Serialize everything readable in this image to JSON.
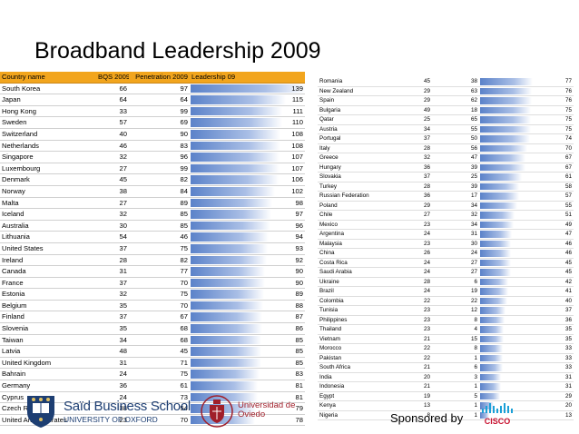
{
  "title": "Broadband Leadership 2009",
  "left_table": {
    "headers": [
      "Country name",
      "BQS 2009",
      "Penetration 2009",
      "Leadership 09"
    ],
    "max_leadership": 139,
    "rows": [
      {
        "country": "South Korea",
        "bqs": "66",
        "pen": "97",
        "lead": 139
      },
      {
        "country": "Japan",
        "bqs": "64",
        "pen": "64",
        "lead": 115
      },
      {
        "country": "Hong Kong",
        "bqs": "33",
        "pen": "99",
        "lead": 111
      },
      {
        "country": "Sweden",
        "bqs": "57",
        "pen": "69",
        "lead": 110
      },
      {
        "country": "Switzerland",
        "bqs": "40",
        "pen": "90",
        "lead": 108
      },
      {
        "country": "Netherlands",
        "bqs": "46",
        "pen": "83",
        "lead": 108
      },
      {
        "country": "Singapore",
        "bqs": "32",
        "pen": "96",
        "lead": 107
      },
      {
        "country": "Luxembourg",
        "bqs": "27",
        "pen": "99",
        "lead": 107
      },
      {
        "country": "Denmark",
        "bqs": "45",
        "pen": "82",
        "lead": 106
      },
      {
        "country": "Norway",
        "bqs": "38",
        "pen": "84",
        "lead": 102
      },
      {
        "country": "Malta",
        "bqs": "27",
        "pen": "89",
        "lead": 98
      },
      {
        "country": "Iceland",
        "bqs": "32",
        "pen": "85",
        "lead": 97
      },
      {
        "country": "Australia",
        "bqs": "30",
        "pen": "85",
        "lead": 96
      },
      {
        "country": "Lithuania",
        "bqs": "54",
        "pen": "46",
        "lead": 94
      },
      {
        "country": "United States",
        "bqs": "37",
        "pen": "75",
        "lead": 93
      },
      {
        "country": "Ireland",
        "bqs": "28",
        "pen": "82",
        "lead": 92
      },
      {
        "country": "Canada",
        "bqs": "31",
        "pen": "77",
        "lead": 90
      },
      {
        "country": "France",
        "bqs": "37",
        "pen": "70",
        "lead": 90
      },
      {
        "country": "Estonia",
        "bqs": "32",
        "pen": "75",
        "lead": 89
      },
      {
        "country": "Belgium",
        "bqs": "35",
        "pen": "70",
        "lead": 88
      },
      {
        "country": "Finland",
        "bqs": "37",
        "pen": "67",
        "lead": 87
      },
      {
        "country": "Slovenia",
        "bqs": "35",
        "pen": "68",
        "lead": 86
      },
      {
        "country": "Taiwan",
        "bqs": "34",
        "pen": "68",
        "lead": 85
      },
      {
        "country": "Latvia",
        "bqs": "48",
        "pen": "45",
        "lead": 85
      },
      {
        "country": "United Kingdom",
        "bqs": "31",
        "pen": "71",
        "lead": 85
      },
      {
        "country": "Bahrain",
        "bqs": "24",
        "pen": "75",
        "lead": 83
      },
      {
        "country": "Germany",
        "bqs": "36",
        "pen": "61",
        "lead": 81
      },
      {
        "country": "Cyprus",
        "bqs": "24",
        "pen": "73",
        "lead": 81
      },
      {
        "country": "Czech Republic",
        "bqs": "38",
        "pen": "54",
        "lead": 79
      },
      {
        "country": "United Arab Emirates",
        "bqs": "23",
        "pen": "70",
        "lead": 78
      }
    ]
  },
  "right_table": {
    "max_leadership": 139,
    "rows": [
      {
        "country": "Romania",
        "bqs": "45",
        "pen": "38",
        "lead": 77
      },
      {
        "country": "New Zealand",
        "bqs": "29",
        "pen": "63",
        "lead": 76
      },
      {
        "country": "Spain",
        "bqs": "29",
        "pen": "62",
        "lead": 76
      },
      {
        "country": "Bulgaria",
        "bqs": "49",
        "pen": "18",
        "lead": 75
      },
      {
        "country": "Qatar",
        "bqs": "25",
        "pen": "65",
        "lead": 75
      },
      {
        "country": "Austria",
        "bqs": "34",
        "pen": "55",
        "lead": 75
      },
      {
        "country": "Portugal",
        "bqs": "37",
        "pen": "50",
        "lead": 74
      },
      {
        "country": "Italy",
        "bqs": "28",
        "pen": "56",
        "lead": 70
      },
      {
        "country": "Greece",
        "bqs": "32",
        "pen": "47",
        "lead": 67
      },
      {
        "country": "Hungary",
        "bqs": "36",
        "pen": "39",
        "lead": 67
      },
      {
        "country": "Slovakia",
        "bqs": "37",
        "pen": "25",
        "lead": 61
      },
      {
        "country": "Turkey",
        "bqs": "28",
        "pen": "39",
        "lead": 58
      },
      {
        "country": "Russian Federation",
        "bqs": "36",
        "pen": "17",
        "lead": 57
      },
      {
        "country": "Poland",
        "bqs": "29",
        "pen": "34",
        "lead": 55
      },
      {
        "country": "Chile",
        "bqs": "27",
        "pen": "32",
        "lead": 51
      },
      {
        "country": "Mexico",
        "bqs": "23",
        "pen": "34",
        "lead": 49
      },
      {
        "country": "Argentina",
        "bqs": "24",
        "pen": "31",
        "lead": 47
      },
      {
        "country": "Malaysia",
        "bqs": "23",
        "pen": "30",
        "lead": 46
      },
      {
        "country": "China",
        "bqs": "26",
        "pen": "24",
        "lead": 46
      },
      {
        "country": "Costa Rica",
        "bqs": "24",
        "pen": "27",
        "lead": 45
      },
      {
        "country": "Saudi Arabia",
        "bqs": "24",
        "pen": "27",
        "lead": 45
      },
      {
        "country": "Ukraine",
        "bqs": "28",
        "pen": "6",
        "lead": 42
      },
      {
        "country": "Brazil",
        "bqs": "24",
        "pen": "19",
        "lead": 41
      },
      {
        "country": "Colombia",
        "bqs": "22",
        "pen": "22",
        "lead": 40
      },
      {
        "country": "Tunisia",
        "bqs": "23",
        "pen": "12",
        "lead": 37
      },
      {
        "country": "Philippines",
        "bqs": "23",
        "pen": "8",
        "lead": 36
      },
      {
        "country": "Thailand",
        "bqs": "23",
        "pen": "4",
        "lead": 35
      },
      {
        "country": "Vietnam",
        "bqs": "21",
        "pen": "15",
        "lead": 35
      },
      {
        "country": "Morocco",
        "bqs": "22",
        "pen": "8",
        "lead": 33
      },
      {
        "country": "Pakistan",
        "bqs": "22",
        "pen": "1",
        "lead": 33
      },
      {
        "country": "South Africa",
        "bqs": "21",
        "pen": "6",
        "lead": 33
      },
      {
        "country": "India",
        "bqs": "20",
        "pen": "3",
        "lead": 31
      },
      {
        "country": "Indonesia",
        "bqs": "21",
        "pen": "1",
        "lead": 31
      },
      {
        "country": "Egypt",
        "bqs": "19",
        "pen": "5",
        "lead": 29
      },
      {
        "country": "Kenya",
        "bqs": "13",
        "pen": "1",
        "lead": 20
      },
      {
        "country": "Nigeria",
        "bqs": "8",
        "pen": "1",
        "lead": 13
      }
    ]
  },
  "footer": {
    "said_name": "Saïd Business School",
    "said_sub": "UNIVERSITY OF OXFORD",
    "oviedo_name": "Universidad de Oviedo",
    "sponsor_text": "Sponsored by",
    "cisco_text": "CISCO"
  },
  "colors": {
    "header_bg": "#f2a51d",
    "bar": "#5b82c9",
    "oxford_blue": "#1d3e72",
    "oviedo_red": "#a01f2a",
    "cisco_blue": "#1ba0d7",
    "cisco_red": "#c8102e"
  }
}
